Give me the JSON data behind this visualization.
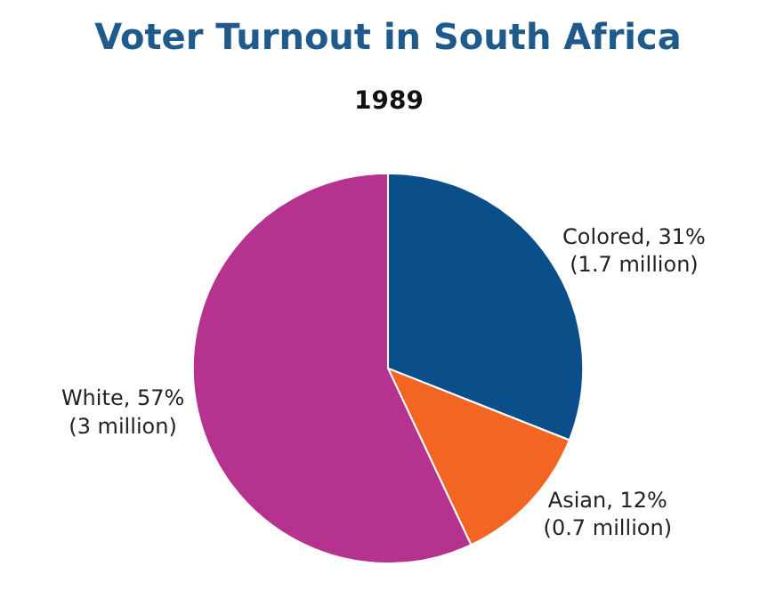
{
  "chart_data": {
    "type": "pie",
    "title": "Voter Turnout in South Africa",
    "subtitle": "1989",
    "categories": [
      "Colored",
      "Asian",
      "White"
    ],
    "values": [
      31,
      12,
      57
    ],
    "colors": [
      "#0b4f8a",
      "#f26522",
      "#b5338f"
    ],
    "value_labels": [
      "31%\n(1.7 million)",
      "12%\n(0.7 million)",
      "57%\n(3 million)"
    ],
    "legend": false
  }
}
